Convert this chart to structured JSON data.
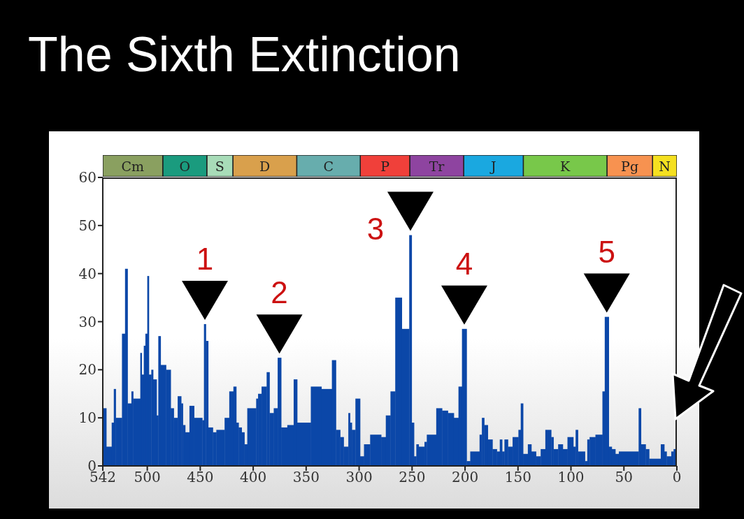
{
  "chart_data": [
    {
      "type": "bar",
      "title": "The Sixth Extinction",
      "orientation": "horizontal",
      "stacked": true,
      "tick_labels": false,
      "categories": [
        null
      ],
      "xlim": [
        542,
        0
      ],
      "series": [
        {
          "name": "N",
          "color": "#f5e020",
          "values": [
            23
          ]
        },
        {
          "name": "Pg",
          "color": "#f79250",
          "values": [
            43
          ]
        },
        {
          "name": "K",
          "color": "#78c84a",
          "values": [
            79
          ]
        },
        {
          "name": "J",
          "color": "#1aa8e0",
          "values": [
            56.3
          ]
        },
        {
          "name": "Tr",
          "color": "#8e44a0",
          "values": [
            50.9
          ]
        },
        {
          "name": "P",
          "color": "#f0403a",
          "values": [
            46.7
          ]
        },
        {
          "name": "C",
          "color": "#67adad",
          "values": [
            60
          ]
        },
        {
          "name": "D",
          "color": "#d9a04c",
          "values": [
            60.3
          ]
        },
        {
          "name": "S",
          "color": "#a8dcb8",
          "values": [
            24.6
          ]
        },
        {
          "name": "O",
          "color": "#1a9b7e",
          "values": [
            41.6
          ]
        },
        {
          "name": "Cm",
          "color": "#8aa060",
          "values": [
            56.6
          ]
        }
      ]
    },
    {
      "type": "histogram",
      "bins": [
        542,
        538.7,
        533.6,
        531.6,
        529.8,
        523.9,
        521,
        518.6,
        515,
        513.3,
        506.6,
        505.3,
        503.3,
        501.8,
        500,
        498.5,
        496.2,
        494.5,
        491.2,
        489.6,
        487.4,
        482.3,
        477.9,
        475,
        471.3,
        468,
        466.4,
        464.2,
        460.2,
        455.8,
        448.1,
        446.5,
        444.7,
        442.5,
        438.1,
        434.8,
        427,
        422.6,
        418.7,
        416,
        413.8,
        410.9,
        408.3,
        405.6,
        397.2,
        395.4,
        392.1,
        387.3,
        384.6,
        380.6,
        376.9,
        373.6,
        367.8,
        361.8,
        358.5,
        345.6,
        335.6,
        325.7,
        321.9,
        317.9,
        314.6,
        310.2,
        308.6,
        306.9,
        303.5,
        299.1,
        295.4,
        289.6,
        279.2,
        274.8,
        270.4,
        265.9,
        259.7,
        252.7,
        250.4,
        248.2,
        246,
        243.8,
        238.3,
        236.1,
        227.2,
        221.7,
        216.2,
        210.6,
        206.2,
        202.9,
        198.5,
        195.1,
        186.3,
        184.1,
        181.9,
        178.5,
        174.1,
        170,
        167.2,
        165,
        162.8,
        159.5,
        155.1,
        149.6,
        147.4,
        145.2,
        140.7,
        137.4,
        133,
        128.6,
        124.2,
        118.7,
        116.5,
        112.1,
        107.7,
        103.3,
        97.8,
        95.6,
        93.4,
        86.8,
        84.6,
        82.4,
        76.9,
        70.3,
        68.1,
        64.3,
        61.5,
        58.1,
        54.8,
        36.1,
        33.9,
        29.5,
        26.2,
        15.2,
        11.9,
        9.7,
        5.3,
        3.1,
        0
      ],
      "values": [
        12,
        4,
        9,
        16,
        10,
        27.5,
        41,
        13,
        15.5,
        14,
        23.5,
        19,
        25,
        27.5,
        39.5,
        19,
        20,
        18,
        10.5,
        27,
        21,
        20,
        12,
        10,
        14.5,
        13,
        8.5,
        7,
        12.5,
        10,
        9.5,
        29.5,
        26,
        8,
        7,
        7.5,
        10,
        15.5,
        16.5,
        9,
        8,
        7,
        4.5,
        12,
        14,
        15,
        16.5,
        19.5,
        11,
        12,
        22.5,
        8,
        8.5,
        18,
        9,
        16.5,
        16,
        22,
        7.5,
        6,
        4,
        11,
        9,
        7.5,
        14,
        2,
        4.5,
        6.5,
        6,
        10.5,
        15.5,
        35,
        28.5,
        48,
        9,
        2,
        4.5,
        4,
        5,
        6.5,
        12,
        11.5,
        11,
        10,
        16.5,
        28.5,
        1,
        3,
        6.5,
        10,
        8.5,
        5.5,
        3.5,
        3,
        5.5,
        3,
        5.5,
        4,
        6,
        7.5,
        13,
        2.5,
        4.5,
        3,
        2,
        3.5,
        7.5,
        6,
        3.5,
        4.5,
        3.5,
        6,
        4,
        7.5,
        3,
        1,
        5.5,
        6,
        6.5,
        15.5,
        31,
        4,
        3.5,
        2.5,
        3,
        12,
        4.5,
        3.5,
        1.5,
        4.5,
        3,
        2,
        3,
        3.5
      ],
      "color": "#0b47a8",
      "xlim": [
        542,
        0
      ],
      "xticks": [
        542,
        500,
        450,
        400,
        350,
        300,
        250,
        200,
        150,
        100,
        50,
        0
      ],
      "ylim": [
        0,
        60
      ],
      "yticks": [
        0,
        10,
        20,
        30,
        40,
        50,
        60
      ],
      "annotations": [
        {
          "text": "1",
          "x": 445.6,
          "y": 29.5
        },
        {
          "text": "2",
          "x": 375.25,
          "y": 22.5
        },
        {
          "text": "3",
          "x": 251.55,
          "y": 48
        },
        {
          "text": "4",
          "x": 200.7,
          "y": 28.5
        },
        {
          "text": "5",
          "x": 66.2,
          "y": 31
        }
      ]
    }
  ]
}
